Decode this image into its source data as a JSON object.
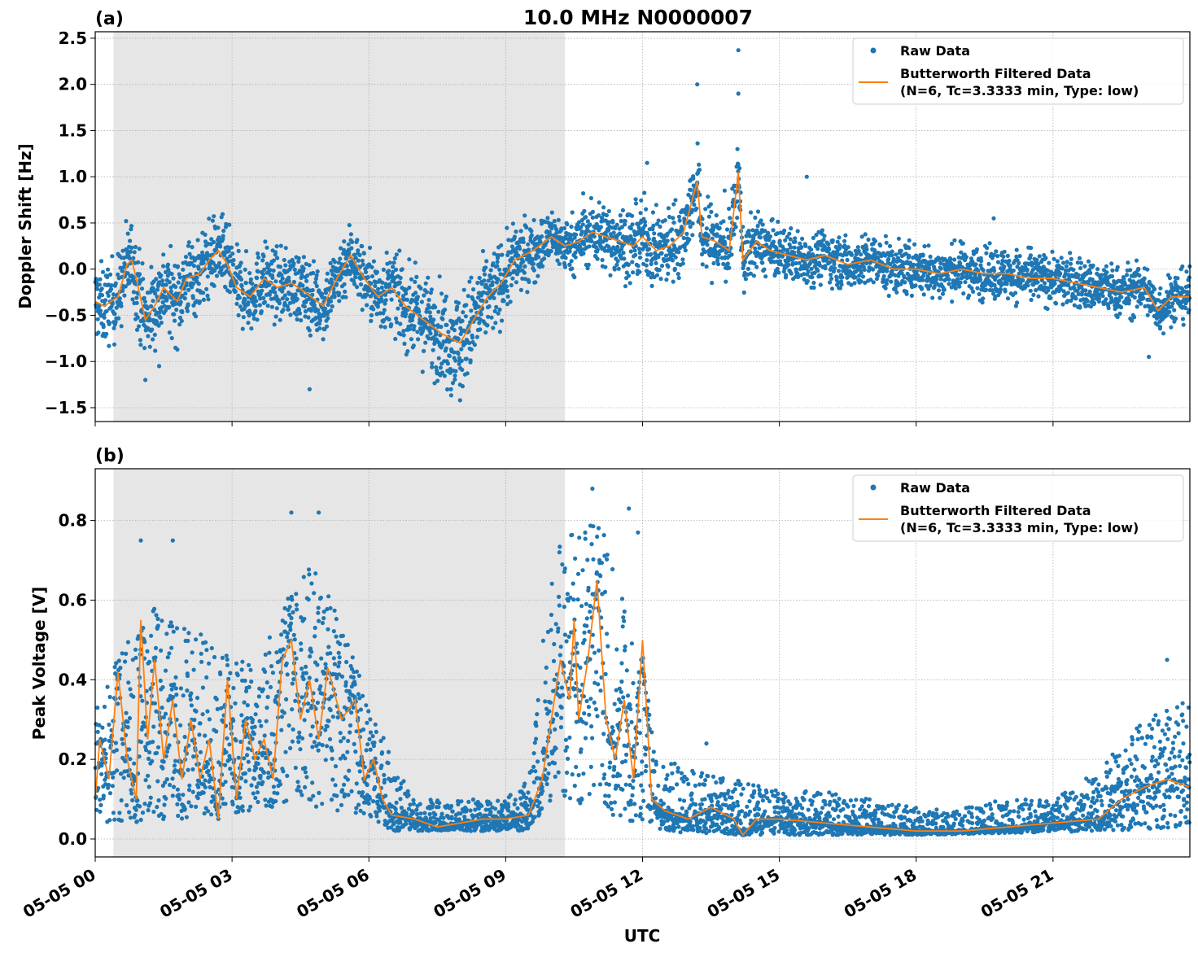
{
  "figure": {
    "title": "10.0 MHz N0000007",
    "xlabel": "UTC",
    "x_ticks": [
      "05-05 00",
      "05-05 03",
      "05-05 06",
      "05-05 09",
      "05-05 12",
      "05-05 15",
      "05-05 18",
      "05-05 21"
    ]
  },
  "colors": {
    "raw": "#1f77b4",
    "filtered": "#ff7f0e",
    "night_shading": "#e6e6e6",
    "grid": "#b0b0b0"
  },
  "chart_data": [
    {
      "panel_label": "(a)",
      "type": "scatter",
      "title": "10.0 MHz N0000007",
      "xlabel": "",
      "ylabel": "Doppler Shift [Hz]",
      "x_unit": "hours UTC on 05-05",
      "xlim": [
        0,
        24
      ],
      "ylim": [
        -1.65,
        2.57
      ],
      "y_ticks": [
        "−1.5",
        "−1.0",
        "−0.5",
        "0.0",
        "0.5",
        "1.0",
        "1.5",
        "2.0",
        "2.5"
      ],
      "y_tick_values": [
        -1.5,
        -1.0,
        -0.5,
        0.0,
        0.5,
        1.0,
        1.5,
        2.0,
        2.5
      ],
      "grid": true,
      "legend_position": "top-right",
      "shaded_interval": [
        0.4,
        10.3
      ],
      "series": [
        {
          "name": "Raw Data",
          "style": "points",
          "spread_about_filtered": [
            [
              0,
              0.45
            ],
            [
              1,
              0.5
            ],
            [
              2.5,
              0.45
            ],
            [
              4,
              0.4
            ],
            [
              6,
              0.4
            ],
            [
              7.5,
              0.55
            ],
            [
              8,
              0.6
            ],
            [
              9,
              0.45
            ],
            [
              10,
              0.3
            ],
            [
              12,
              0.45
            ],
            [
              13.5,
              0.45
            ],
            [
              15,
              0.3
            ],
            [
              18,
              0.3
            ],
            [
              21,
              0.3
            ],
            [
              24,
              0.3
            ]
          ],
          "outliers": [
            [
              1.1,
              -1.2
            ],
            [
              1.4,
              -1.05
            ],
            [
              4.7,
              -1.3
            ],
            [
              8.0,
              -1.42
            ],
            [
              10.7,
              0.82
            ],
            [
              12.1,
              1.15
            ],
            [
              13.2,
              2.0
            ],
            [
              13.8,
              0.85
            ],
            [
              14.1,
              2.37
            ],
            [
              14.1,
              1.9
            ],
            [
              15.6,
              1.0
            ],
            [
              19.7,
              0.55
            ],
            [
              23.1,
              -0.95
            ],
            [
              7.8,
              -1.3
            ]
          ]
        },
        {
          "name": "Butterworth Filtered Data\n(N=6, Tc=3.3333 min, Type: low)",
          "style": "line",
          "points": [
            [
              0,
              -0.35
            ],
            [
              0.2,
              -0.4
            ],
            [
              0.5,
              -0.3
            ],
            [
              0.7,
              0.05
            ],
            [
              0.8,
              0.1
            ],
            [
              0.9,
              -0.1
            ],
            [
              1.1,
              -0.55
            ],
            [
              1.3,
              -0.4
            ],
            [
              1.5,
              -0.2
            ],
            [
              1.8,
              -0.35
            ],
            [
              2.0,
              -0.1
            ],
            [
              2.3,
              -0.05
            ],
            [
              2.5,
              0.1
            ],
            [
              2.7,
              0.2
            ],
            [
              2.9,
              0.05
            ],
            [
              3.1,
              -0.2
            ],
            [
              3.4,
              -0.3
            ],
            [
              3.7,
              -0.1
            ],
            [
              4.0,
              -0.2
            ],
            [
              4.3,
              -0.15
            ],
            [
              4.6,
              -0.25
            ],
            [
              5.0,
              -0.4
            ],
            [
              5.3,
              -0.1
            ],
            [
              5.6,
              0.15
            ],
            [
              5.9,
              -0.1
            ],
            [
              6.2,
              -0.3
            ],
            [
              6.5,
              -0.2
            ],
            [
              6.8,
              -0.4
            ],
            [
              7.2,
              -0.55
            ],
            [
              7.6,
              -0.7
            ],
            [
              8.0,
              -0.8
            ],
            [
              8.3,
              -0.55
            ],
            [
              8.6,
              -0.3
            ],
            [
              8.9,
              -0.15
            ],
            [
              9.2,
              0.1
            ],
            [
              9.6,
              0.2
            ],
            [
              10.0,
              0.35
            ],
            [
              10.3,
              0.25
            ],
            [
              10.6,
              0.3
            ],
            [
              10.9,
              0.4
            ],
            [
              11.2,
              0.35
            ],
            [
              11.5,
              0.3
            ],
            [
              11.8,
              0.25
            ],
            [
              12.0,
              0.35
            ],
            [
              12.3,
              0.2
            ],
            [
              12.6,
              0.25
            ],
            [
              12.9,
              0.4
            ],
            [
              13.2,
              0.95
            ],
            [
              13.3,
              0.35
            ],
            [
              13.6,
              0.3
            ],
            [
              13.9,
              0.2
            ],
            [
              14.1,
              1.05
            ],
            [
              14.2,
              0.1
            ],
            [
              14.5,
              0.3
            ],
            [
              14.8,
              0.2
            ],
            [
              15.2,
              0.15
            ],
            [
              15.6,
              0.1
            ],
            [
              16.0,
              0.15
            ],
            [
              16.5,
              0.05
            ],
            [
              17.0,
              0.1
            ],
            [
              17.5,
              0.0
            ],
            [
              18.0,
              0.0
            ],
            [
              18.5,
              -0.05
            ],
            [
              19.0,
              0.0
            ],
            [
              19.5,
              -0.05
            ],
            [
              20.0,
              -0.05
            ],
            [
              20.5,
              -0.1
            ],
            [
              21.0,
              -0.1
            ],
            [
              21.5,
              -0.15
            ],
            [
              22.0,
              -0.2
            ],
            [
              22.5,
              -0.25
            ],
            [
              23.0,
              -0.2
            ],
            [
              23.3,
              -0.45
            ],
            [
              23.6,
              -0.3
            ],
            [
              24.0,
              -0.3
            ]
          ]
        }
      ]
    },
    {
      "panel_label": "(b)",
      "type": "scatter",
      "title": "",
      "xlabel": "UTC",
      "ylabel": "Peak Voltage [V]",
      "x_unit": "hours UTC on 05-05",
      "xlim": [
        0,
        24
      ],
      "ylim": [
        -0.045,
        0.93
      ],
      "y_ticks": [
        "0.0",
        "0.2",
        "0.4",
        "0.6",
        "0.8"
      ],
      "y_tick_values": [
        0.0,
        0.2,
        0.4,
        0.6,
        0.8
      ],
      "grid": true,
      "legend_position": "top-right",
      "shaded_interval": [
        0.4,
        10.3
      ],
      "series": [
        {
          "name": "Raw Data",
          "style": "points",
          "envelope_low": [
            [
              0,
              0.03
            ],
            [
              2,
              0.05
            ],
            [
              4,
              0.08
            ],
            [
              6,
              0.06
            ],
            [
              6.5,
              0.02
            ],
            [
              8,
              0.02
            ],
            [
              9.5,
              0.02
            ],
            [
              10,
              0.1
            ],
            [
              11,
              0.08
            ],
            [
              12,
              0.02
            ],
            [
              14,
              0.01
            ],
            [
              18,
              0.01
            ],
            [
              22,
              0.02
            ],
            [
              24,
              0.03
            ]
          ],
          "envelope_high": [
            [
              0,
              0.35
            ],
            [
              0.5,
              0.45
            ],
            [
              1,
              0.6
            ],
            [
              1.5,
              0.6
            ],
            [
              2,
              0.55
            ],
            [
              2.5,
              0.5
            ],
            [
              3,
              0.45
            ],
            [
              3.5,
              0.45
            ],
            [
              4,
              0.55
            ],
            [
              4.5,
              0.7
            ],
            [
              5,
              0.65
            ],
            [
              5.5,
              0.5
            ],
            [
              6,
              0.35
            ],
            [
              6.5,
              0.2
            ],
            [
              7,
              0.1
            ],
            [
              8,
              0.1
            ],
            [
              9,
              0.1
            ],
            [
              9.5,
              0.15
            ],
            [
              10,
              0.7
            ],
            [
              10.5,
              0.8
            ],
            [
              11,
              0.85
            ],
            [
              11.5,
              0.65
            ],
            [
              12,
              0.4
            ],
            [
              12.5,
              0.2
            ],
            [
              13,
              0.18
            ],
            [
              14,
              0.15
            ],
            [
              15,
              0.12
            ],
            [
              16,
              0.12
            ],
            [
              17,
              0.1
            ],
            [
              18,
              0.08
            ],
            [
              19,
              0.08
            ],
            [
              20,
              0.1
            ],
            [
              21,
              0.1
            ],
            [
              22,
              0.18
            ],
            [
              23,
              0.3
            ],
            [
              24,
              0.35
            ]
          ],
          "outliers": [
            [
              1.0,
              0.75
            ],
            [
              1.7,
              0.75
            ],
            [
              4.3,
              0.82
            ],
            [
              4.9,
              0.82
            ],
            [
              10.9,
              0.88
            ],
            [
              11.9,
              0.77
            ],
            [
              11.7,
              0.83
            ],
            [
              13.4,
              0.24
            ],
            [
              23.5,
              0.45
            ]
          ]
        },
        {
          "name": "Butterworth Filtered Data\n(N=6, Tc=3.3333 min, Type: low)",
          "style": "line",
          "points": [
            [
              0,
              0.1
            ],
            [
              0.1,
              0.25
            ],
            [
              0.3,
              0.15
            ],
            [
              0.5,
              0.42
            ],
            [
              0.7,
              0.2
            ],
            [
              0.9,
              0.1
            ],
            [
              1.0,
              0.55
            ],
            [
              1.15,
              0.25
            ],
            [
              1.3,
              0.45
            ],
            [
              1.5,
              0.2
            ],
            [
              1.7,
              0.35
            ],
            [
              1.9,
              0.15
            ],
            [
              2.1,
              0.3
            ],
            [
              2.3,
              0.15
            ],
            [
              2.5,
              0.25
            ],
            [
              2.7,
              0.05
            ],
            [
              2.9,
              0.4
            ],
            [
              3.1,
              0.1
            ],
            [
              3.3,
              0.3
            ],
            [
              3.5,
              0.2
            ],
            [
              3.7,
              0.25
            ],
            [
              3.9,
              0.15
            ],
            [
              4.1,
              0.45
            ],
            [
              4.3,
              0.5
            ],
            [
              4.5,
              0.3
            ],
            [
              4.7,
              0.4
            ],
            [
              4.9,
              0.25
            ],
            [
              5.1,
              0.43
            ],
            [
              5.4,
              0.3
            ],
            [
              5.7,
              0.35
            ],
            [
              5.9,
              0.15
            ],
            [
              6.1,
              0.2
            ],
            [
              6.3,
              0.1
            ],
            [
              6.5,
              0.06
            ],
            [
              7,
              0.05
            ],
            [
              7.5,
              0.03
            ],
            [
              8,
              0.04
            ],
            [
              8.5,
              0.05
            ],
            [
              9,
              0.05
            ],
            [
              9.5,
              0.06
            ],
            [
              9.8,
              0.15
            ],
            [
              10.0,
              0.3
            ],
            [
              10.2,
              0.45
            ],
            [
              10.4,
              0.35
            ],
            [
              10.5,
              0.55
            ],
            [
              10.6,
              0.3
            ],
            [
              10.8,
              0.45
            ],
            [
              11.0,
              0.65
            ],
            [
              11.2,
              0.3
            ],
            [
              11.4,
              0.2
            ],
            [
              11.6,
              0.35
            ],
            [
              11.8,
              0.15
            ],
            [
              12.0,
              0.5
            ],
            [
              12.2,
              0.1
            ],
            [
              12.5,
              0.07
            ],
            [
              13,
              0.05
            ],
            [
              13.5,
              0.08
            ],
            [
              14,
              0.05
            ],
            [
              14.2,
              0.01
            ],
            [
              14.5,
              0.05
            ],
            [
              15,
              0.05
            ],
            [
              16,
              0.04
            ],
            [
              17,
              0.03
            ],
            [
              18,
              0.02
            ],
            [
              19,
              0.02
            ],
            [
              20,
              0.03
            ],
            [
              21,
              0.04
            ],
            [
              22,
              0.05
            ],
            [
              22.5,
              0.1
            ],
            [
              23,
              0.13
            ],
            [
              23.5,
              0.15
            ],
            [
              24,
              0.13
            ]
          ]
        }
      ]
    }
  ]
}
